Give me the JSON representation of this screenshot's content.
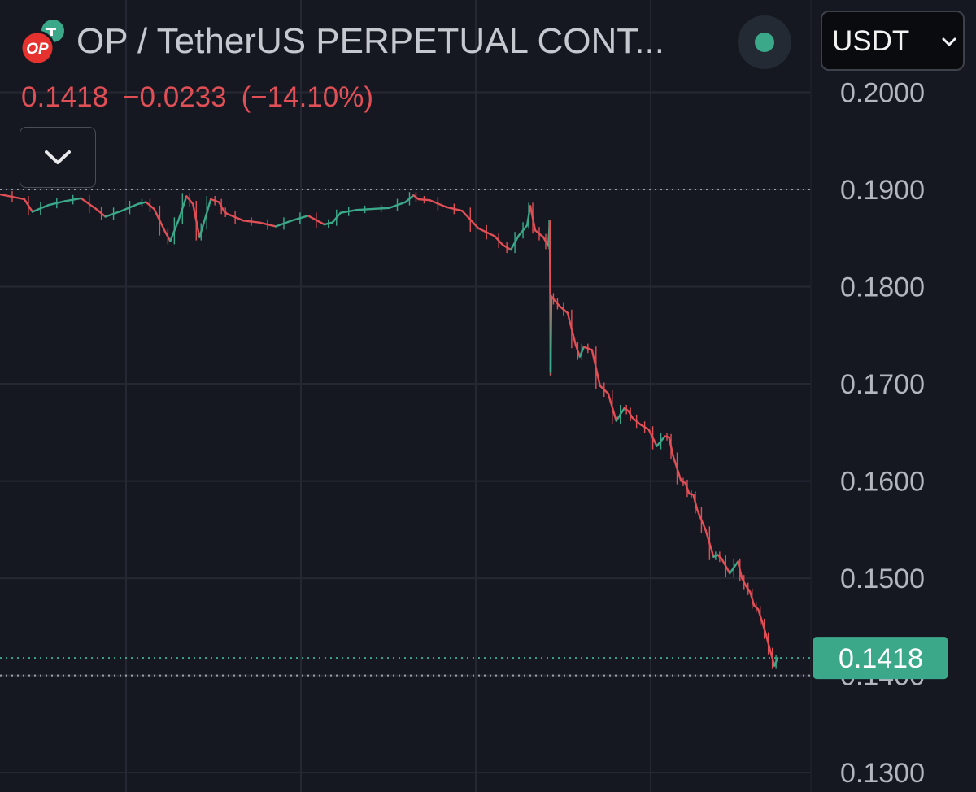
{
  "header": {
    "title": "OP / TetherUS PERPETUAL CONT...",
    "logo_text": "OP",
    "price": "0.1418",
    "change": "−0.0233",
    "change_pct": "(−14.10%)",
    "currency": "USDT"
  },
  "colors": {
    "background": "#161821",
    "up": "#3aa889",
    "down": "#e04f56",
    "grid": "#252833",
    "price_tag": "#3aa889",
    "logo_red": "#e6322f",
    "logo_teal": "#3aa889"
  },
  "icons": {
    "collapse": "chevron-down-icon",
    "currency_dropdown": "chevron-down-icon",
    "status": "status-dot-icon"
  },
  "chart_data": {
    "type": "line",
    "title": "OP / TetherUS PERPETUAL CONT...",
    "ylabel": "",
    "xlabel": "",
    "y_ticks": [
      "0.2000",
      "0.1900",
      "0.1800",
      "0.1700",
      "0.1600",
      "0.1500",
      "0.1400",
      "0.1300"
    ],
    "ylim": [
      0.128,
      0.2095
    ],
    "xlim": [
      0,
      100
    ],
    "grid": true,
    "last_price": 0.1418,
    "last_price_label": "0.1418",
    "reference_lines": [
      0.19,
      0.1418,
      0.14
    ],
    "series": [
      {
        "x": [
          0,
          3,
          4,
          6,
          8,
          10,
          12,
          13,
          15,
          17,
          18,
          19,
          20.4,
          21,
          22,
          23,
          23.8,
          24.6,
          25,
          26,
          27,
          27.6,
          28,
          30,
          32,
          34,
          36,
          38,
          40,
          41,
          42,
          44,
          46,
          48,
          50,
          51,
          51.6,
          53,
          55,
          57,
          59,
          61,
          62,
          63,
          64,
          65,
          65.4,
          66,
          67,
          67.6,
          67.8,
          67.9,
          68,
          68.5,
          69,
          70,
          71,
          71.5,
          72,
          73,
          74,
          75,
          76,
          77,
          77.5,
          78,
          79,
          80,
          81,
          82,
          82.5,
          83,
          84,
          84.5,
          85,
          85.5,
          86,
          87,
          88,
          88.5,
          89,
          90,
          91,
          91.5,
          92,
          92.5,
          93,
          93.5,
          94,
          94.5,
          95,
          95.5,
          95.9
        ],
        "values": [
          0.1895,
          0.189,
          0.1877,
          0.1884,
          0.1888,
          0.1891,
          0.1879,
          0.1872,
          0.1878,
          0.1885,
          0.1887,
          0.188,
          0.1856,
          0.1847,
          0.1868,
          0.1893,
          0.1885,
          0.1851,
          0.1862,
          0.189,
          0.1887,
          0.1878,
          0.1875,
          0.1868,
          0.1866,
          0.1862,
          0.1868,
          0.1873,
          0.1864,
          0.1866,
          0.1876,
          0.1879,
          0.188,
          0.1881,
          0.1887,
          0.1894,
          0.189,
          0.1889,
          0.1882,
          0.1878,
          0.186,
          0.1852,
          0.1843,
          0.1838,
          0.1853,
          0.1863,
          0.1883,
          0.1858,
          0.1851,
          0.1842,
          0.1865,
          0.1712,
          0.179,
          0.1785,
          0.178,
          0.1773,
          0.174,
          0.1728,
          0.1738,
          0.1735,
          0.1698,
          0.169,
          0.1662,
          0.1675,
          0.1672,
          0.1665,
          0.1658,
          0.1653,
          0.1636,
          0.1646,
          0.1645,
          0.1626,
          0.16,
          0.1598,
          0.1587,
          0.1586,
          0.157,
          0.155,
          0.1522,
          0.1524,
          0.152,
          0.1505,
          0.1517,
          0.15,
          0.1492,
          0.1486,
          0.1472,
          0.1468,
          0.1455,
          0.1441,
          0.1425,
          0.141,
          0.1418
        ]
      }
    ]
  }
}
